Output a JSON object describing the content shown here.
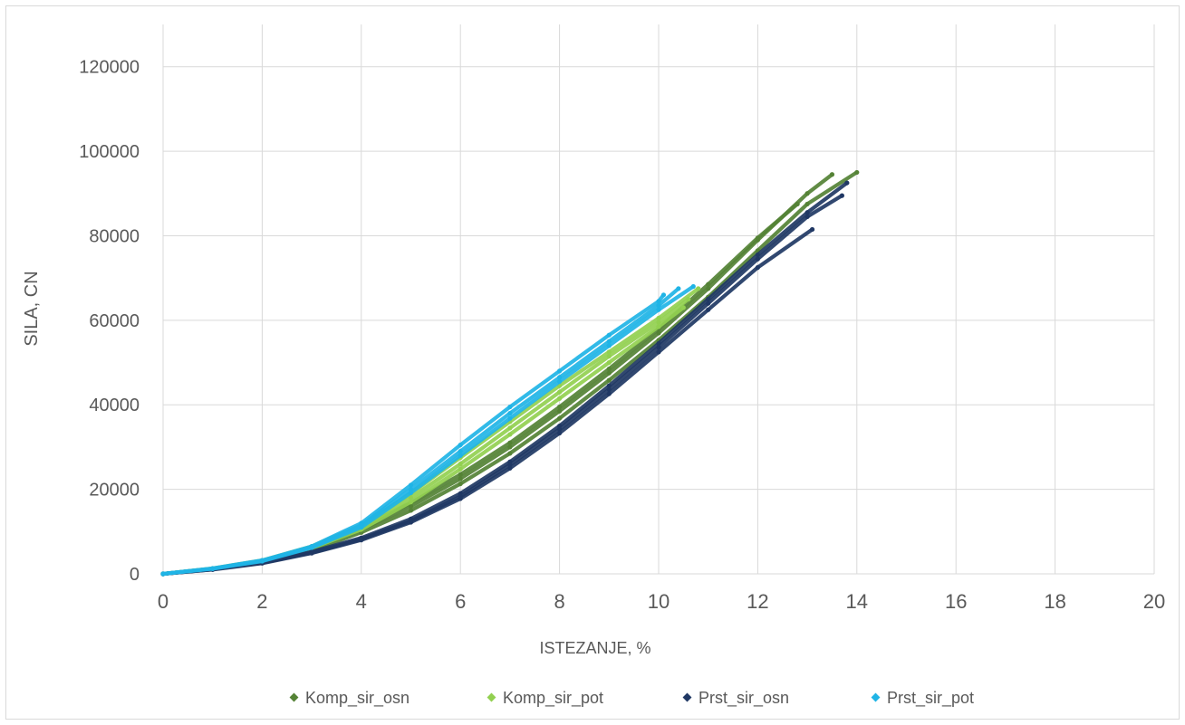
{
  "chart_data": {
    "type": "scatter",
    "title": "",
    "xlabel": "ISTEZANJE, %",
    "ylabel": "SILA, CN",
    "xlim": [
      0,
      20
    ],
    "ylim": [
      0,
      130000
    ],
    "x_ticks": [
      0,
      2,
      4,
      6,
      8,
      10,
      12,
      14,
      16,
      18,
      20
    ],
    "y_ticks": [
      0,
      20000,
      40000,
      60000,
      80000,
      100000,
      120000
    ],
    "grid": true,
    "legend_position": "bottom",
    "series": [
      {
        "name": "Komp_sir_osn",
        "color": "#548235",
        "curves": [
          {
            "x": [
              0,
              1,
              2,
              3,
              4,
              5,
              6,
              7,
              8,
              9,
              10,
              11,
              12,
              13,
              13.5
            ],
            "y": [
              0,
              1200,
              3000,
              6000,
              10500,
              16000,
              22500,
              30000,
              38500,
              47500,
              57000,
              67500,
              79000,
              90000,
              94500
            ]
          },
          {
            "x": [
              0,
              1,
              2,
              3,
              4,
              5,
              6,
              7,
              8,
              9,
              10,
              11,
              12,
              13,
              14
            ],
            "y": [
              0,
              1100,
              2800,
              5600,
              9800,
              15000,
              21300,
              28500,
              36800,
              45800,
              55300,
              65500,
              76500,
              87500,
              95000
            ]
          },
          {
            "x": [
              0,
              1,
              2,
              3,
              4,
              5,
              6,
              7,
              8,
              9,
              10,
              11,
              12,
              12.8
            ],
            "y": [
              0,
              1250,
              3100,
              6200,
              11000,
              16800,
              23500,
              31000,
              39500,
              48500,
              58000,
              68500,
              79500,
              87500
            ]
          }
        ]
      },
      {
        "name": "Komp_sir_pot",
        "color": "#92d050",
        "curves": [
          {
            "x": [
              0,
              1,
              2,
              3,
              4,
              5,
              6,
              7,
              8,
              9,
              10,
              10.8
            ],
            "y": [
              0,
              1300,
              3200,
              6500,
              11500,
              19000,
              27500,
              36000,
              44500,
              52500,
              60500,
              67500
            ]
          },
          {
            "x": [
              0,
              1,
              2,
              3,
              4,
              5,
              6,
              7,
              8,
              9,
              10,
              10.6
            ],
            "y": [
              0,
              1250,
              3100,
              6300,
              11000,
              18000,
              26000,
              34500,
              43000,
              51500,
              59500,
              65000
            ]
          },
          {
            "x": [
              0,
              1,
              2,
              3,
              4,
              5,
              6,
              7,
              8,
              9,
              10,
              10.5
            ],
            "y": [
              0,
              1200,
              3000,
              6100,
              10500,
              17000,
              24800,
              33000,
              41500,
              50000,
              58500,
              63000
            ]
          }
        ]
      },
      {
        "name": "Prst_sir_osn",
        "color": "#203864",
        "curves": [
          {
            "x": [
              0,
              1,
              2,
              3,
              4,
              5,
              6,
              7,
              8,
              9,
              10,
              11,
              12,
              13,
              13.8
            ],
            "y": [
              0,
              1100,
              2700,
              5200,
              8500,
              13000,
              19000,
              26500,
              35000,
              44500,
              54500,
              65000,
              75500,
              85500,
              92500
            ]
          },
          {
            "x": [
              0,
              1,
              2,
              3,
              4,
              5,
              6,
              7,
              8,
              9,
              10,
              11,
              12,
              13,
              13.7
            ],
            "y": [
              0,
              1050,
              2600,
              5000,
              8200,
              12500,
              18300,
              25800,
              34200,
              43600,
              53600,
              64000,
              74500,
              84500,
              89500
            ]
          },
          {
            "x": [
              0,
              1,
              2,
              3,
              4,
              5,
              6,
              7,
              8,
              9,
              10,
              11,
              12,
              13.1
            ],
            "y": [
              0,
              1000,
              2500,
              4900,
              8000,
              12200,
              17800,
              25000,
              33300,
              42600,
              52500,
              62500,
              72500,
              81500
            ]
          }
        ]
      },
      {
        "name": "Prst_sir_pot",
        "color": "#1fb4e6",
        "curves": [
          {
            "x": [
              0,
              1,
              2,
              3,
              4,
              5,
              6,
              7,
              8,
              9,
              10,
              10.1
            ],
            "y": [
              0,
              1300,
              3200,
              6500,
              12000,
              21000,
              30500,
              39500,
              48000,
              56500,
              64500,
              66000
            ]
          },
          {
            "x": [
              0,
              1,
              2,
              3,
              4,
              5,
              6,
              7,
              8,
              9,
              10,
              10.4
            ],
            "y": [
              0,
              1250,
              3100,
              6300,
              11500,
              20000,
              29000,
              38000,
              46500,
              55000,
              63500,
              67500
            ]
          },
          {
            "x": [
              0,
              1,
              2,
              3,
              4,
              5,
              6,
              7,
              8,
              9,
              10,
              10.7
            ],
            "y": [
              0,
              1200,
              3000,
              6200,
              11000,
              19200,
              28000,
              36800,
              45500,
              54000,
              62500,
              68000
            ]
          }
        ]
      }
    ]
  }
}
